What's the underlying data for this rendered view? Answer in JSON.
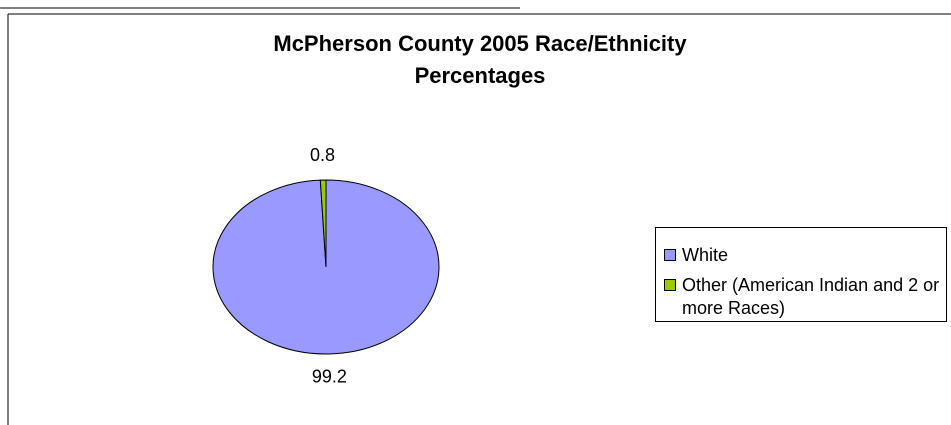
{
  "chart_data": {
    "type": "pie",
    "title": "McPherson County 2005 Race/Ethnicity Percentages",
    "categories": [
      "White",
      "Other (American Indian and 2 or more Races)"
    ],
    "values": [
      99.2,
      0.8
    ],
    "colors": [
      "#9999ff",
      "#99cc00"
    ]
  }
}
